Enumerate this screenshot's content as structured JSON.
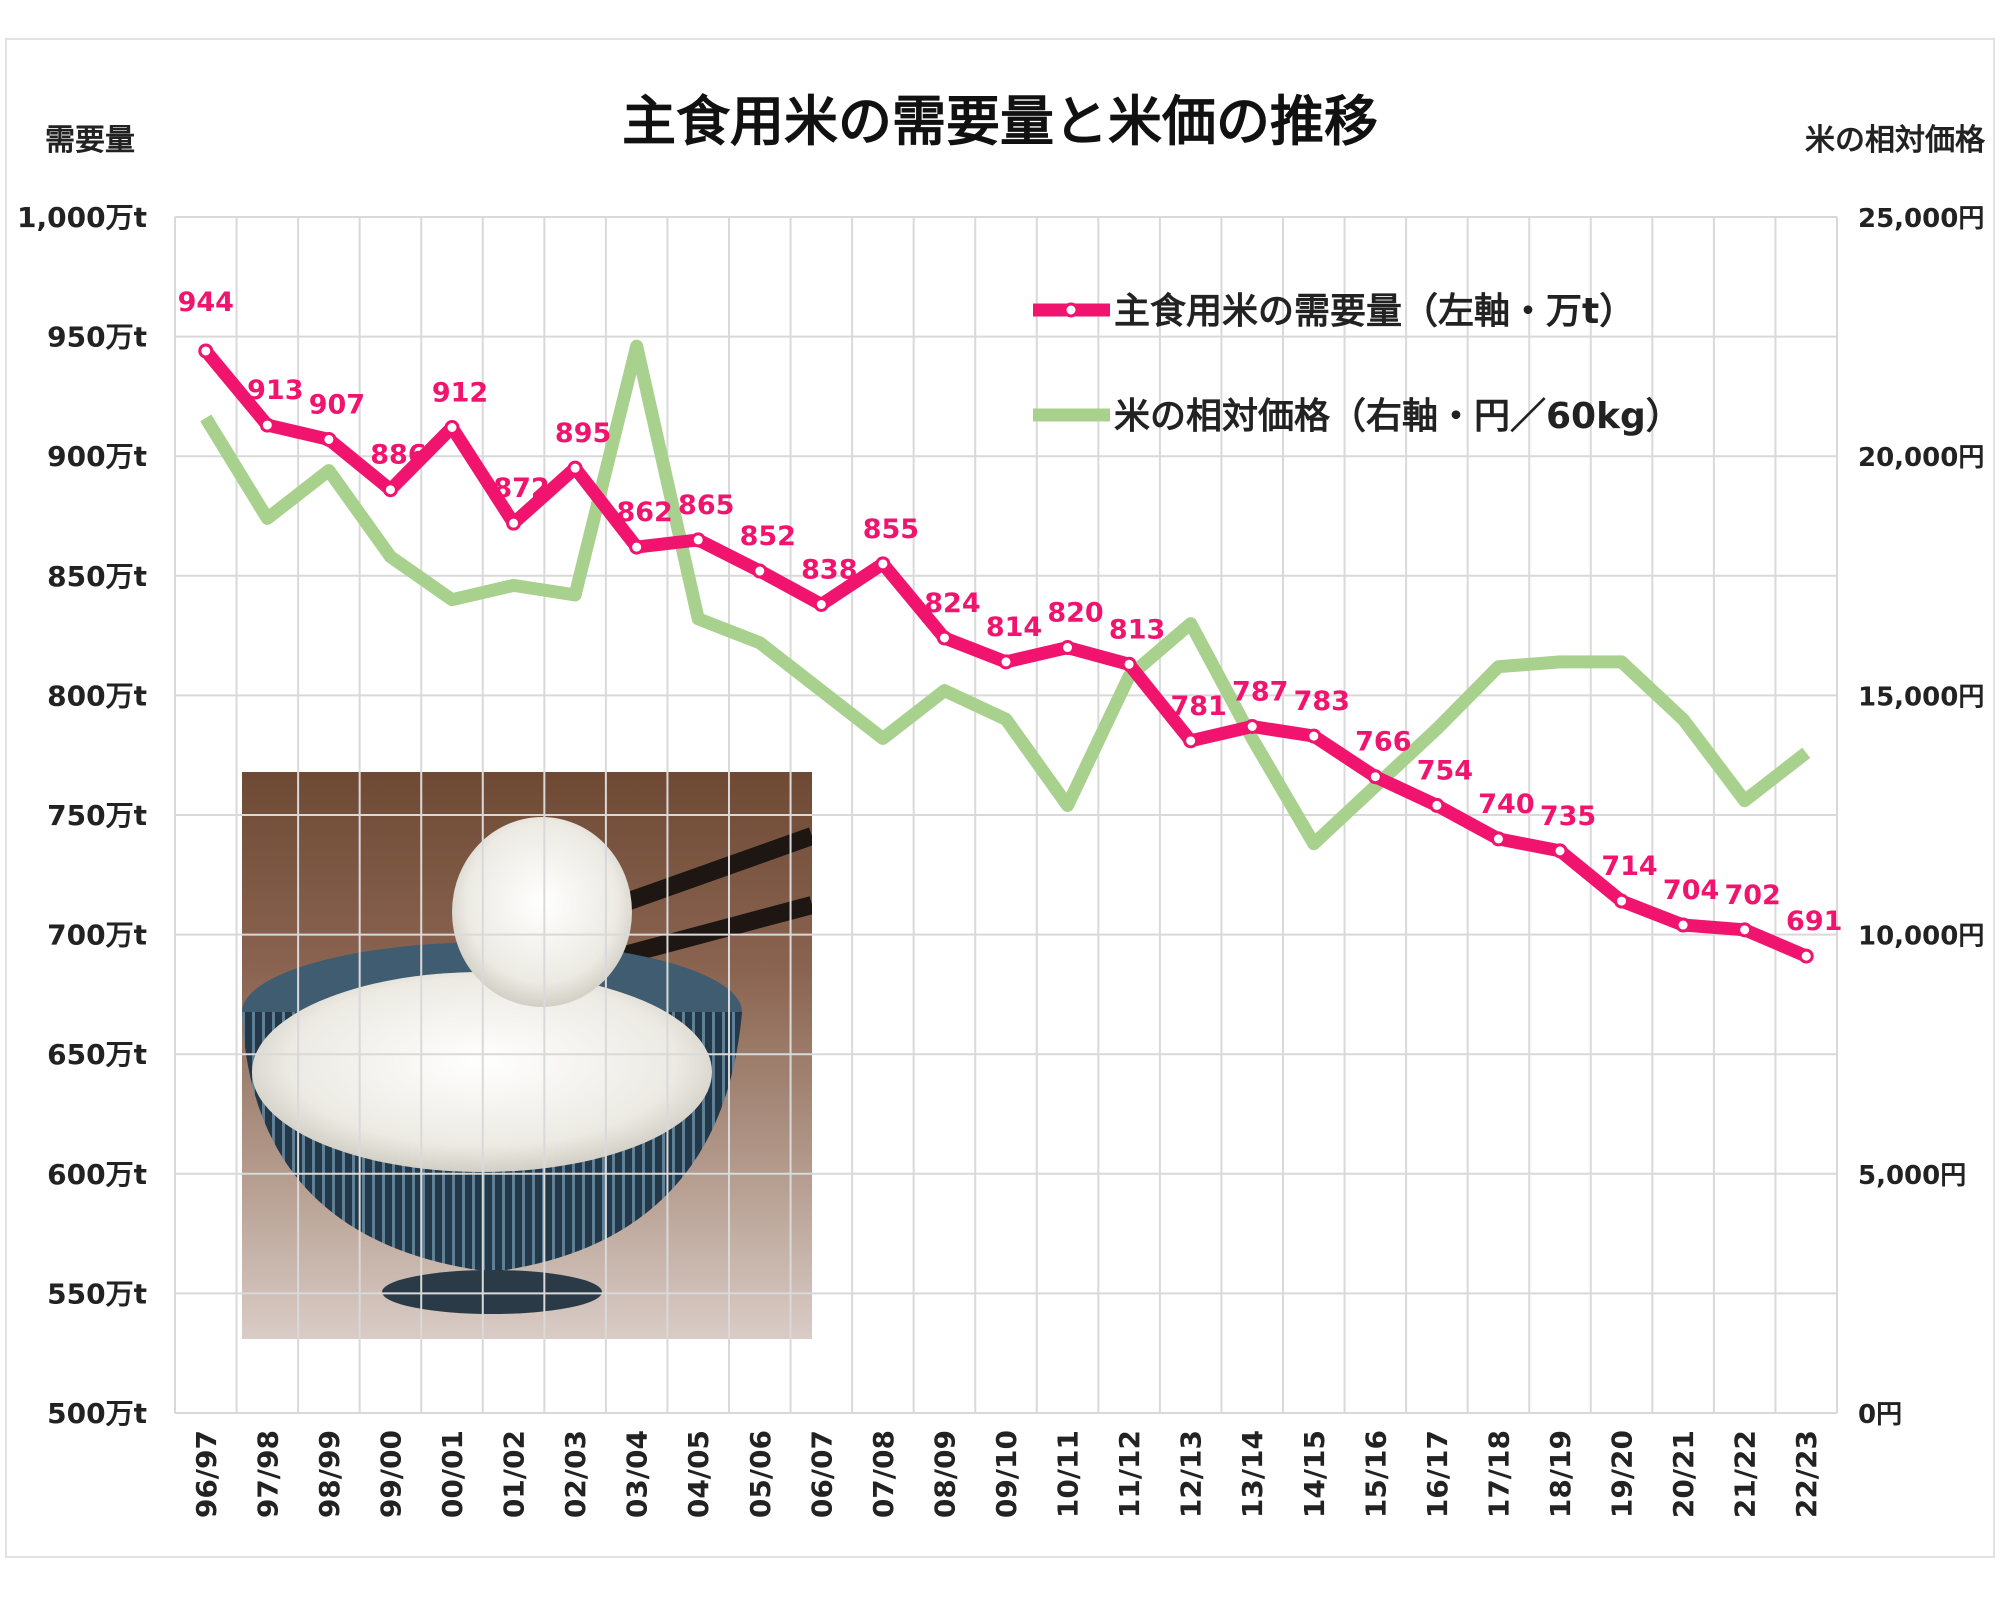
{
  "chart_data": {
    "type": "line",
    "title": "主食用米の需要量と米価の推移",
    "left_axis": {
      "label": "需要量",
      "range": [
        500,
        1000
      ],
      "ticks": [
        "500万t",
        "550万t",
        "600万t",
        "650万t",
        "700万t",
        "750万t",
        "800万t",
        "850万t",
        "900万t",
        "950万t",
        "1,000万t"
      ]
    },
    "right_axis": {
      "label": "米の相対価格",
      "range": [
        0,
        25000
      ],
      "ticks": [
        "0円",
        "5,000円",
        "10,000円",
        "15,000円",
        "20,000円",
        "25,000円"
      ]
    },
    "categories": [
      "96/97",
      "97/98",
      "98/99",
      "99/00",
      "00/01",
      "01/02",
      "02/03",
      "03/04",
      "04/05",
      "05/06",
      "06/07",
      "07/08",
      "08/09",
      "09/10",
      "10/11",
      "11/12",
      "12/13",
      "13/14",
      "14/15",
      "15/16",
      "16/17",
      "17/18",
      "18/19",
      "19/20",
      "20/21",
      "21/22",
      "22/23"
    ],
    "grid": true,
    "legend_position": "top-right",
    "series": [
      {
        "name": "主食用米の需要量（左軸・万t）",
        "axis": "left",
        "color": "#f0146e",
        "values": [
          944,
          913,
          907,
          886,
          912,
          872,
          895,
          862,
          865,
          852,
          838,
          855,
          824,
          814,
          820,
          813,
          781,
          787,
          783,
          766,
          754,
          740,
          735,
          714,
          704,
          702,
          691
        ]
      },
      {
        "name": "米の相対価格（右軸・円／60kg）",
        "axis": "right",
        "color": "#a9d18e",
        "values": [
          20800,
          18700,
          19700,
          17900,
          17000,
          17300,
          17100,
          22300,
          16600,
          16100,
          15100,
          14100,
          15100,
          14500,
          12700,
          15400,
          16500,
          14100,
          11900,
          13100,
          14300,
          15600,
          15700,
          15700,
          14500,
          12800,
          13800
        ]
      }
    ]
  }
}
